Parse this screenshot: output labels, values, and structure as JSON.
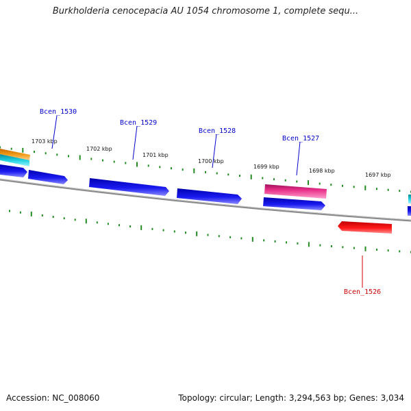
{
  "title": "Burkholderia cenocepacia AU 1054 chromosome 1, complete sequ...",
  "footer": {
    "accession": "Accession: NC_008060",
    "summary": "Topology: circular; Length: 3,294,563 bp; Genes: 3,034"
  },
  "colors": {
    "backbone": "#888888",
    "tick": "#228B22",
    "gene_forward": "#1010e0",
    "gene_reverse": "#ee1111",
    "gene_pink": "#e8308a",
    "gene_cyan": "#18c8d8",
    "gene_orange": "#f29a18",
    "label_forward": "#0000cc",
    "label_reverse": "#cc0000"
  },
  "kbp_labels": [
    "1703 kbp",
    "1702 kbp",
    "1701 kbp",
    "1700 kbp",
    "1699 kbp",
    "1698 kbp",
    "1697 kbp"
  ],
  "genes": [
    {
      "name": "Bcen_1530",
      "strand": "+"
    },
    {
      "name": "Bcen_1529",
      "strand": "+"
    },
    {
      "name": "Bcen_1528",
      "strand": "+"
    },
    {
      "name": "Bcen_1527",
      "strand": "+"
    },
    {
      "name": "Bcen_1526",
      "strand": "-"
    }
  ]
}
